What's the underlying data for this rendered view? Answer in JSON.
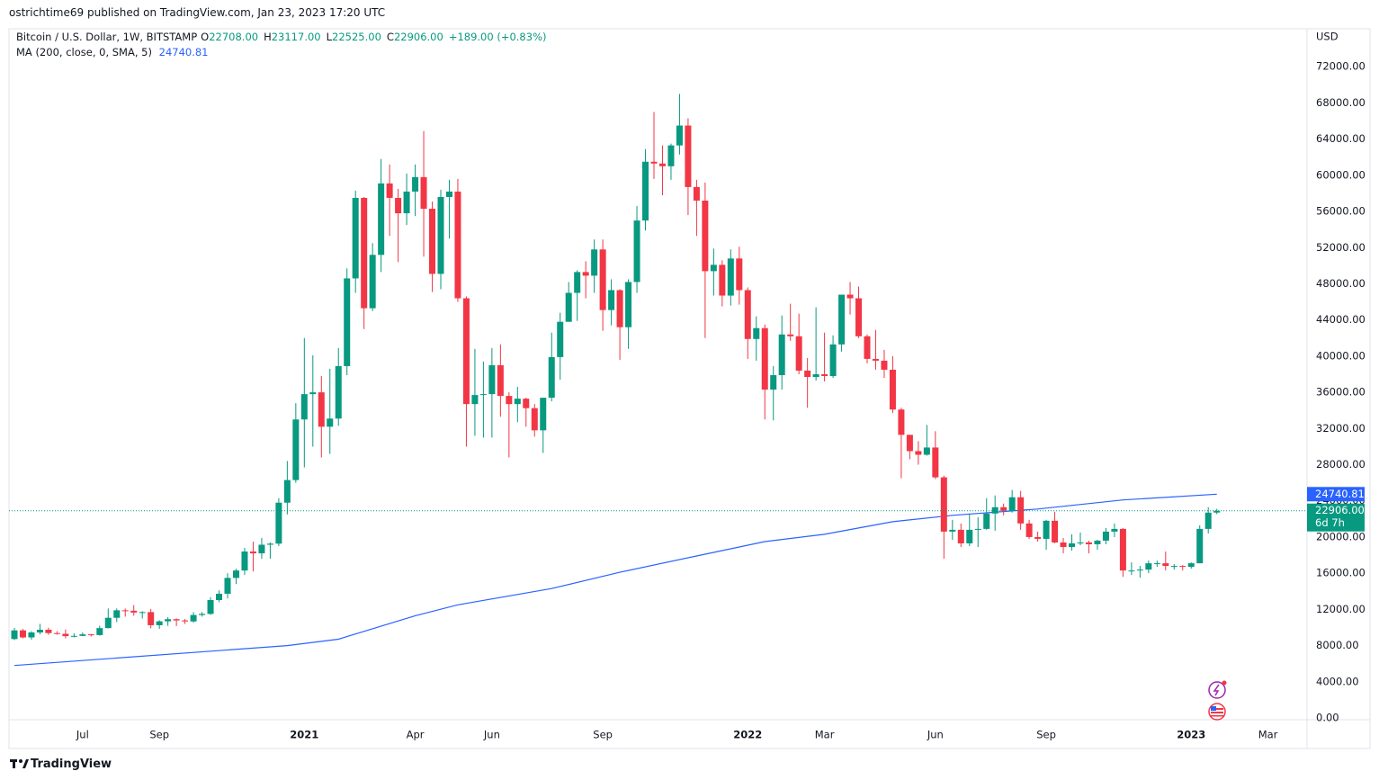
{
  "header": {
    "publisher": "ostrichtime69 published on TradingView.com, Jan 23, 2023 17:20 UTC"
  },
  "chart_data": {
    "type": "candlestick",
    "title": "Bitcoin / U.S. Dollar, 1W, BITSTAMP",
    "legend_values": [
      {
        "label": "O",
        "value": "22708.00"
      },
      {
        "label": "H",
        "value": "23117.00"
      },
      {
        "label": "L",
        "value": "22525.00"
      },
      {
        "label": "C",
        "value": "22906.00"
      }
    ],
    "change": "+189.00 (+0.83%)",
    "currency": "USD",
    "up_color": "#089981",
    "down_color": "#f23645",
    "candles": [
      [
        8720,
        9950,
        8600,
        9680
      ],
      [
        9680,
        9840,
        8800,
        8900
      ],
      [
        8900,
        9600,
        8650,
        9450
      ],
      [
        9450,
        10400,
        9250,
        9750
      ],
      [
        9750,
        9980,
        9200,
        9380
      ],
      [
        9380,
        9600,
        9200,
        9300
      ],
      [
        9300,
        9780,
        8800,
        9040
      ],
      [
        9040,
        9350,
        8900,
        9070
      ],
      [
        9070,
        9460,
        9050,
        9240
      ],
      [
        9240,
        9290,
        9000,
        9160
      ],
      [
        9160,
        10200,
        9100,
        9930
      ],
      [
        9930,
        12100,
        9900,
        11070
      ],
      [
        11070,
        12100,
        10600,
        11900
      ],
      [
        11900,
        12100,
        11200,
        11850
      ],
      [
        11850,
        12480,
        11300,
        11650
      ],
      [
        11650,
        11800,
        11000,
        11700
      ],
      [
        11700,
        12050,
        9900,
        10250
      ],
      [
        10250,
        10800,
        9850,
        10680
      ],
      [
        10680,
        11150,
        10180,
        10920
      ],
      [
        10920,
        11000,
        10150,
        10780
      ],
      [
        10780,
        10950,
        10380,
        10670
      ],
      [
        10670,
        11700,
        10530,
        11380
      ],
      [
        11380,
        11700,
        11200,
        11500
      ],
      [
        11500,
        13350,
        11400,
        13030
      ],
      [
        13030,
        14100,
        12800,
        13730
      ],
      [
        13730,
        16000,
        13200,
        15480
      ],
      [
        15480,
        16500,
        14800,
        16300
      ],
      [
        16300,
        18800,
        15800,
        18400
      ],
      [
        18400,
        19500,
        16200,
        18200
      ],
      [
        18200,
        19900,
        17600,
        19150
      ],
      [
        19150,
        19400,
        17600,
        19270
      ],
      [
        19270,
        24300,
        19000,
        23800
      ],
      [
        23800,
        28400,
        22500,
        26300
      ],
      [
        26300,
        34800,
        26000,
        33000
      ],
      [
        33000,
        42000,
        27700,
        35800
      ],
      [
        35800,
        40100,
        30000,
        36000
      ],
      [
        36000,
        37800,
        28800,
        32200
      ],
      [
        32200,
        38600,
        29200,
        33100
      ],
      [
        33100,
        40900,
        32300,
        38900
      ],
      [
        38900,
        49700,
        37900,
        48600
      ],
      [
        48600,
        58300,
        47000,
        57500
      ],
      [
        57500,
        57600,
        43000,
        45300
      ],
      [
        45300,
        52500,
        45000,
        51200
      ],
      [
        51200,
        61800,
        49300,
        59100
      ],
      [
        59100,
        61200,
        53300,
        57500
      ],
      [
        57500,
        58500,
        50400,
        55800
      ],
      [
        55800,
        60200,
        54500,
        58200
      ],
      [
        58200,
        61200,
        55500,
        59800
      ],
      [
        59800,
        64900,
        51000,
        56300
      ],
      [
        56300,
        57100,
        47100,
        49100
      ],
      [
        49100,
        58400,
        47400,
        57600
      ],
      [
        57600,
        59500,
        53000,
        58200
      ],
      [
        58200,
        59600,
        46000,
        46400
      ],
      [
        46400,
        46600,
        30000,
        34700
      ],
      [
        34700,
        40800,
        31200,
        35700
      ],
      [
        35700,
        39400,
        31000,
        35800
      ],
      [
        35800,
        40900,
        31000,
        39000
      ],
      [
        39000,
        41300,
        33300,
        35600
      ],
      [
        35600,
        36000,
        28800,
        34700
      ],
      [
        34700,
        36600,
        32700,
        35300
      ],
      [
        35300,
        35400,
        32200,
        34250
      ],
      [
        34250,
        34700,
        31100,
        31800
      ],
      [
        31800,
        35400,
        29300,
        35400
      ],
      [
        35400,
        42600,
        35000,
        39900
      ],
      [
        39900,
        44800,
        37400,
        43800
      ],
      [
        43800,
        48200,
        43800,
        47000
      ],
      [
        47000,
        49500,
        43900,
        49300
      ],
      [
        49300,
        50500,
        46400,
        48900
      ],
      [
        48900,
        52900,
        47000,
        51800
      ],
      [
        51800,
        52900,
        42800,
        45100
      ],
      [
        45100,
        48500,
        43400,
        47300
      ],
      [
        47300,
        47400,
        39600,
        43200
      ],
      [
        43200,
        48500,
        40800,
        48200
      ],
      [
        48200,
        56600,
        47000,
        55000
      ],
      [
        55000,
        62900,
        53900,
        61500
      ],
      [
        61500,
        67000,
        59600,
        61300
      ],
      [
        61300,
        63300,
        57800,
        61000
      ],
      [
        61000,
        63500,
        59500,
        63300
      ],
      [
        63300,
        69000,
        62300,
        65500
      ],
      [
        65500,
        66300,
        55600,
        58700
      ],
      [
        58700,
        59500,
        53300,
        57200
      ],
      [
        57200,
        59200,
        42000,
        49400
      ],
      [
        49400,
        51900,
        46700,
        50100
      ],
      [
        50100,
        50600,
        45500,
        46700
      ],
      [
        46700,
        51800,
        45600,
        50800
      ],
      [
        50800,
        52100,
        45700,
        47300
      ],
      [
        47300,
        47600,
        39700,
        41900
      ],
      [
        41900,
        44400,
        39500,
        43100
      ],
      [
        43100,
        43500,
        33000,
        36300
      ],
      [
        36300,
        38900,
        32900,
        37900
      ],
      [
        37900,
        44500,
        36300,
        42400
      ],
      [
        42400,
        45800,
        41700,
        42200
      ],
      [
        42200,
        44700,
        38000,
        38400
      ],
      [
        38400,
        39800,
        34300,
        37700
      ],
      [
        37700,
        45400,
        37300,
        38000
      ],
      [
        38000,
        42600,
        37200,
        37800
      ],
      [
        37800,
        42300,
        37600,
        41300
      ],
      [
        41300,
        46800,
        40500,
        46800
      ],
      [
        46800,
        48200,
        44600,
        46400
      ],
      [
        46400,
        47700,
        42000,
        42200
      ],
      [
        42200,
        42400,
        39200,
        39700
      ],
      [
        39700,
        42900,
        38500,
        39500
      ],
      [
        39500,
        40700,
        37600,
        38500
      ],
      [
        38500,
        40000,
        33700,
        34100
      ],
      [
        34100,
        34300,
        26500,
        31300
      ],
      [
        31300,
        31300,
        28600,
        29500
      ],
      [
        29500,
        30600,
        28000,
        29100
      ],
      [
        29100,
        32400,
        29000,
        29900
      ],
      [
        29900,
        31700,
        26400,
        26600
      ],
      [
        26600,
        26800,
        17600,
        20600
      ],
      [
        20600,
        21900,
        19700,
        20800
      ],
      [
        20800,
        21500,
        18900,
        19300
      ],
      [
        19300,
        22500,
        19000,
        20800
      ],
      [
        20800,
        22200,
        18900,
        20900
      ],
      [
        20900,
        24300,
        20800,
        22600
      ],
      [
        22600,
        24600,
        20700,
        23300
      ],
      [
        23300,
        23700,
        22400,
        22900
      ],
      [
        22900,
        25200,
        22700,
        24400
      ],
      [
        24400,
        25100,
        20800,
        21500
      ],
      [
        21500,
        21900,
        19800,
        20000
      ],
      [
        20000,
        20600,
        19500,
        19800
      ],
      [
        19800,
        21900,
        18600,
        21800
      ],
      [
        21800,
        22800,
        19300,
        19400
      ],
      [
        19400,
        19900,
        18200,
        18900
      ],
      [
        18900,
        20300,
        18500,
        19300
      ],
      [
        19300,
        20500,
        19100,
        19400
      ],
      [
        19400,
        19600,
        18200,
        19200
      ],
      [
        19200,
        19700,
        18600,
        19600
      ],
      [
        19600,
        21000,
        19200,
        20600
      ],
      [
        20600,
        21500,
        20000,
        20900
      ],
      [
        20900,
        21000,
        15600,
        16300
      ],
      [
        16300,
        17200,
        15800,
        16300
      ],
      [
        16300,
        16800,
        15500,
        16400
      ],
      [
        16400,
        17400,
        16000,
        17100
      ],
      [
        17100,
        17400,
        16700,
        17100
      ],
      [
        17100,
        18400,
        16300,
        16800
      ],
      [
        16800,
        17000,
        16400,
        16800
      ],
      [
        16800,
        16900,
        16300,
        16700
      ],
      [
        16700,
        17200,
        16500,
        17100
      ],
      [
        17100,
        21300,
        17100,
        20900
      ],
      [
        20900,
        23300,
        20400,
        22700
      ],
      [
        22708,
        23117,
        22525,
        22906
      ]
    ],
    "ma": {
      "name": "MA (200, close, 0, SMA, 5)",
      "value_label": "24740.81",
      "color": "#2962ff",
      "x": [
        0,
        32,
        38,
        47,
        52,
        63,
        71,
        80,
        88,
        95,
        103,
        110,
        120,
        130,
        141
      ],
      "values": [
        5800,
        8000,
        8700,
        11300,
        12500,
        14300,
        16100,
        17900,
        19500,
        20300,
        21700,
        22400,
        23100,
        24100,
        24740.81
      ]
    },
    "last_price_label": "22906.00",
    "countdown": "6d 7h",
    "ylim": [
      -200,
      76000
    ],
    "yticks": [
      {
        "value": 0,
        "label": "0.00"
      },
      {
        "value": 4000,
        "label": "4000.00"
      },
      {
        "value": 8000,
        "label": "8000.00"
      },
      {
        "value": 12000,
        "label": "12000.00"
      },
      {
        "value": 16000,
        "label": "16000.00"
      },
      {
        "value": 20000,
        "label": "20000.00"
      },
      {
        "value": 24000,
        "label": "24000.00"
      },
      {
        "value": 28000,
        "label": "28000.00"
      },
      {
        "value": 32000,
        "label": "32000.00"
      },
      {
        "value": 36000,
        "label": "36000.00"
      },
      {
        "value": 40000,
        "label": "40000.00"
      },
      {
        "value": 44000,
        "label": "44000.00"
      },
      {
        "value": 48000,
        "label": "48000.00"
      },
      {
        "value": 52000,
        "label": "52000.00"
      },
      {
        "value": 56000,
        "label": "56000.00"
      },
      {
        "value": 60000,
        "label": "60000.00"
      },
      {
        "value": 64000,
        "label": "64000.00"
      },
      {
        "value": 68000,
        "label": "68000.00"
      },
      {
        "value": 72000,
        "label": "72000.00"
      }
    ],
    "xticks": [
      {
        "value": 8,
        "label": "Jul"
      },
      {
        "value": 17,
        "label": "Sep"
      },
      {
        "value": 34,
        "label": "2021",
        "bold": true
      },
      {
        "value": 47,
        "label": "Apr"
      },
      {
        "value": 56,
        "label": "Jun"
      },
      {
        "value": 69,
        "label": "Sep"
      },
      {
        "value": 86,
        "label": "2022",
        "bold": true
      },
      {
        "value": 95,
        "label": "Mar"
      },
      {
        "value": 108,
        "label": "Jun"
      },
      {
        "value": 121,
        "label": "Sep"
      },
      {
        "value": 138,
        "label": "2023",
        "bold": true
      },
      {
        "value": 147,
        "label": "Mar"
      }
    ],
    "grid": false
  },
  "footer": {
    "brand": "TradingView"
  }
}
